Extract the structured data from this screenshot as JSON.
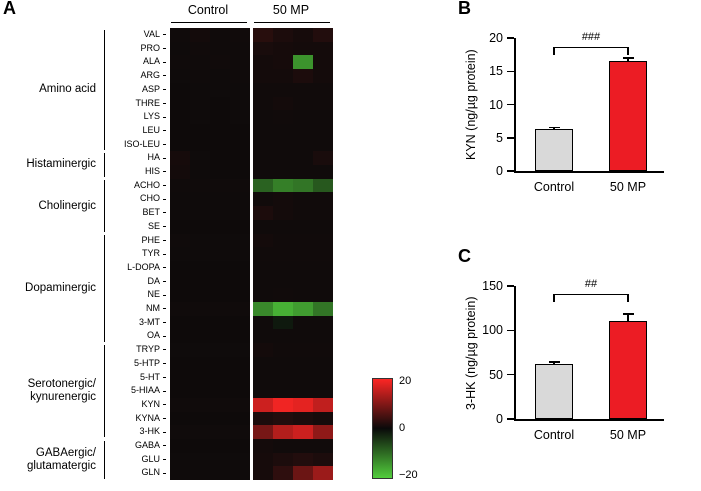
{
  "chart_data": [
    {
      "type": "heatmap",
      "panel": "A",
      "col_groups": [
        "Control",
        "50 MP"
      ],
      "cols_per_group": 4,
      "row_groups": [
        {
          "name": "Amino acid",
          "name_lines": [
            "Amino acid"
          ],
          "rows": [
            "VAL",
            "PRO",
            "ALA",
            "ARG",
            "ASP",
            "THRE",
            "LYS",
            "LEU",
            "ISO-LEU"
          ]
        },
        {
          "name": "Histaminergic",
          "name_lines": [
            "Histaminergic"
          ],
          "rows": [
            "HA",
            "HIS"
          ]
        },
        {
          "name": "Cholinergic",
          "name_lines": [
            "Cholinergic"
          ],
          "rows": [
            "ACHO",
            "CHO",
            "BET",
            "SE"
          ]
        },
        {
          "name": "Dopaminergic",
          "name_lines": [
            "Dopaminergic"
          ],
          "rows": [
            "PHE",
            "TYR",
            "L-DOPA",
            "DA",
            "NE",
            "NM",
            "3-MT",
            "OA"
          ]
        },
        {
          "name": "Serotonergic/kynurenergic",
          "name_lines": [
            "Serotonergic/",
            "kynurenergic"
          ],
          "rows": [
            "TRYP",
            "5-HTP",
            "5-HT",
            "5-HIAA",
            "KYN",
            "KYNA",
            "3-HK"
          ]
        },
        {
          "name": "GABAergic/glutamatergic",
          "name_lines": [
            "GABAergic/",
            "glutamatergic"
          ],
          "rows": [
            "GABA",
            "GLU",
            "GLN"
          ]
        }
      ],
      "values": {
        "VAL": [
          0.5,
          0.8,
          0.5,
          0.6,
          2.5,
          1.5,
          1.0,
          2.0
        ],
        "PRO": [
          0.4,
          0.6,
          0.5,
          0.5,
          1.2,
          1.0,
          0.8,
          0.8
        ],
        "ALA": [
          0.5,
          0.5,
          0.6,
          0.5,
          0.8,
          1.0,
          -14.0,
          0.8
        ],
        "ARG": [
          0.4,
          0.5,
          0.4,
          0.5,
          0.8,
          0.8,
          1.5,
          0.8
        ],
        "ASP": [
          0.3,
          0.4,
          0.4,
          0.4,
          0.6,
          0.6,
          0.6,
          0.6
        ],
        "THRE": [
          0.3,
          0.4,
          0.3,
          0.4,
          0.6,
          0.8,
          0.6,
          0.6
        ],
        "LYS": [
          0.3,
          0.4,
          0.3,
          0.4,
          0.5,
          0.6,
          0.5,
          0.5
        ],
        "LEU": [
          0.3,
          0.3,
          0.3,
          0.3,
          0.5,
          0.5,
          0.5,
          0.5
        ],
        "ISO-LEU": [
          0.3,
          0.3,
          0.3,
          0.3,
          0.5,
          0.5,
          0.5,
          0.5
        ],
        "HA": [
          1.0,
          0.4,
          0.3,
          0.3,
          0.5,
          0.5,
          0.5,
          1.2
        ],
        "HIS": [
          0.8,
          0.4,
          0.3,
          0.3,
          0.5,
          0.5,
          0.5,
          0.5
        ],
        "ACHO": [
          0.5,
          0.5,
          0.5,
          0.5,
          -9.0,
          -12.0,
          -11.0,
          -8.0
        ],
        "CHO": [
          0.4,
          0.4,
          0.4,
          0.4,
          0.6,
          0.8,
          0.6,
          0.6
        ],
        "BET": [
          0.4,
          0.4,
          0.4,
          0.4,
          1.5,
          0.8,
          0.6,
          0.6
        ],
        "SE": [
          0.3,
          0.3,
          0.3,
          0.3,
          0.5,
          0.5,
          0.5,
          0.5
        ],
        "PHE": [
          0.5,
          0.4,
          0.4,
          0.4,
          0.8,
          0.6,
          0.6,
          0.6
        ],
        "TYR": [
          0.4,
          0.4,
          0.4,
          0.4,
          0.6,
          0.6,
          0.6,
          0.6
        ],
        "L-DOPA": [
          0.3,
          0.3,
          0.3,
          0.3,
          0.5,
          0.5,
          0.5,
          0.5
        ],
        "DA": [
          0.3,
          0.3,
          0.3,
          0.3,
          0.5,
          0.5,
          0.5,
          0.5
        ],
        "NE": [
          0.3,
          0.3,
          0.3,
          0.3,
          0.5,
          0.6,
          0.5,
          0.5
        ],
        "NM": [
          0.5,
          0.5,
          0.5,
          0.5,
          -13.0,
          -17.0,
          -15.0,
          -11.0
        ],
        "3-MT": [
          0.3,
          0.3,
          0.3,
          0.3,
          0.5,
          -1.5,
          0.5,
          0.5
        ],
        "OA": [
          0.3,
          0.3,
          0.3,
          0.3,
          0.5,
          0.5,
          0.5,
          0.5
        ],
        "TRYP": [
          0.4,
          0.4,
          0.4,
          0.4,
          0.8,
          0.6,
          0.6,
          0.6
        ],
        "5-HTP": [
          0.3,
          0.3,
          0.3,
          0.3,
          0.5,
          0.5,
          0.5,
          0.5
        ],
        "5-HT": [
          0.3,
          0.3,
          0.3,
          0.3,
          0.5,
          0.5,
          0.5,
          0.5
        ],
        "5-HIAA": [
          0.3,
          0.3,
          0.3,
          0.3,
          0.5,
          0.5,
          0.5,
          0.5
        ],
        "KYN": [
          0.5,
          0.5,
          0.5,
          0.5,
          16.0,
          19.0,
          18.0,
          15.0
        ],
        "KYNA": [
          0.3,
          0.3,
          0.3,
          0.3,
          1.5,
          2.0,
          1.5,
          1.0
        ],
        "3-HK": [
          0.5,
          0.5,
          0.5,
          0.5,
          9.0,
          14.0,
          16.0,
          11.0
        ],
        "GABA": [
          0.3,
          0.3,
          0.3,
          0.3,
          0.8,
          0.6,
          0.6,
          0.6
        ],
        "GLU": [
          0.4,
          0.4,
          0.4,
          0.4,
          1.0,
          1.5,
          2.0,
          1.5
        ],
        "GLN": [
          0.4,
          0.4,
          0.4,
          0.4,
          1.0,
          3.0,
          8.0,
          12.0
        ]
      },
      "colorbar": {
        "max": 20,
        "mid": 0,
        "min": -20,
        "labels": [
          "20",
          "0",
          "−20"
        ],
        "positive_color": "#fc2624",
        "zero_color": "#0a0a0a",
        "negative_color": "#52cd3c"
      }
    },
    {
      "type": "bar",
      "panel": "B",
      "ylabel": "KYN (ng/µg protein)",
      "categories": [
        "Control",
        "50 MP"
      ],
      "values": [
        6.3,
        16.5
      ],
      "errors": [
        0.3,
        0.5
      ],
      "ylim": [
        0,
        20
      ],
      "yticks": [
        0,
        5,
        10,
        15,
        20
      ],
      "bar_colors": [
        "#d9d9d9",
        "#ec1c24"
      ],
      "significance": "###",
      "bracket_top": 9
    },
    {
      "type": "bar",
      "panel": "C",
      "ylabel": "3-HK (ng/µg protein)",
      "categories": [
        "Control",
        "50 MP"
      ],
      "values": [
        62,
        110
      ],
      "errors": [
        2.5,
        9
      ],
      "ylim": [
        0,
        150
      ],
      "yticks": [
        0,
        50,
        100,
        150
      ],
      "bar_colors": [
        "#d9d9d9",
        "#ec1c24"
      ],
      "significance": "##",
      "bracket_top": 8
    }
  ]
}
